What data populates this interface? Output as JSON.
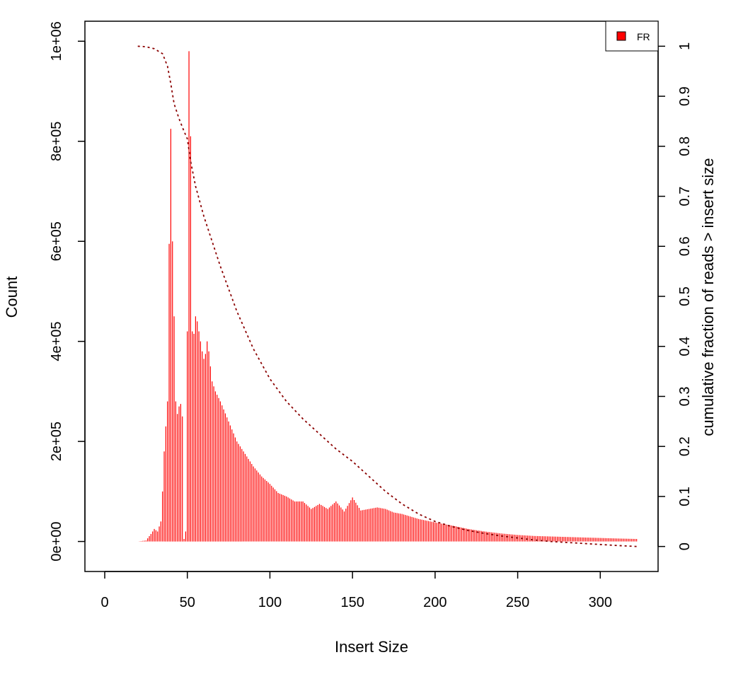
{
  "chart_data": {
    "type": "bar",
    "title": "",
    "xlabel": "Insert Size",
    "ylabel": "Count",
    "y2label": "cumulative fraction of reads > insert size",
    "xlim": [
      -12,
      335
    ],
    "ylim": [
      -60000,
      1040000
    ],
    "y2lim": [
      -0.05,
      1.05
    ],
    "x_ticks": [
      0,
      50,
      100,
      150,
      200,
      250,
      300
    ],
    "x_tick_labels": [
      "0",
      "50",
      "100",
      "150",
      "200",
      "250",
      "300"
    ],
    "y_ticks": [
      0,
      200000,
      400000,
      600000,
      800000,
      1000000
    ],
    "y_tick_labels": [
      "0e+00",
      "2e+05",
      "4e+05",
      "6e+05",
      "8e+05",
      "1e+06"
    ],
    "y2_ticks": [
      0,
      0.1,
      0.2,
      0.3,
      0.4,
      0.5,
      0.6,
      0.7,
      0.8,
      0.9,
      1
    ],
    "y2_tick_labels": [
      "0",
      "0.1",
      "0.2",
      "0.3",
      "0.4",
      "0.5",
      "0.6",
      "0.7",
      "0.8",
      "0.9",
      "1"
    ],
    "legend": {
      "position": "top-right",
      "entries": [
        {
          "label": "FR",
          "color": "#ff0000"
        }
      ]
    },
    "grid": false,
    "colors": {
      "bars": "#ff0000",
      "cumulative": "#8b0000"
    },
    "series": [
      {
        "name": "FR",
        "kind": "bar",
        "anchors": [
          [
            20,
            0
          ],
          [
            25,
            2000
          ],
          [
            28,
            15000
          ],
          [
            30,
            25000
          ],
          [
            32,
            20000
          ],
          [
            33,
            30000
          ],
          [
            34,
            40000
          ],
          [
            35,
            100000
          ],
          [
            36,
            180000
          ],
          [
            37,
            230000
          ],
          [
            38,
            280000
          ],
          [
            39,
            595000
          ],
          [
            40,
            825000
          ],
          [
            41,
            600000
          ],
          [
            42,
            450000
          ],
          [
            43,
            280000
          ],
          [
            44,
            255000
          ],
          [
            45,
            270000
          ],
          [
            46,
            275000
          ],
          [
            47,
            250000
          ],
          [
            48,
            5000
          ],
          [
            49,
            20000
          ],
          [
            50,
            420000
          ],
          [
            51,
            980000
          ],
          [
            52,
            810000
          ],
          [
            53,
            420000
          ],
          [
            54,
            415000
          ],
          [
            55,
            450000
          ],
          [
            56,
            440000
          ],
          [
            57,
            420000
          ],
          [
            58,
            400000
          ],
          [
            59,
            380000
          ],
          [
            60,
            365000
          ],
          [
            61,
            375000
          ],
          [
            62,
            400000
          ],
          [
            63,
            380000
          ],
          [
            64,
            350000
          ],
          [
            65,
            320000
          ],
          [
            67,
            300000
          ],
          [
            70,
            280000
          ],
          [
            75,
            240000
          ],
          [
            80,
            200000
          ],
          [
            85,
            175000
          ],
          [
            90,
            150000
          ],
          [
            95,
            130000
          ],
          [
            100,
            115000
          ],
          [
            105,
            97000
          ],
          [
            110,
            90000
          ],
          [
            115,
            80000
          ],
          [
            120,
            80000
          ],
          [
            125,
            65000
          ],
          [
            130,
            75000
          ],
          [
            135,
            65000
          ],
          [
            140,
            80000
          ],
          [
            145,
            60000
          ],
          [
            150,
            88000
          ],
          [
            155,
            62000
          ],
          [
            160,
            65000
          ],
          [
            165,
            68000
          ],
          [
            170,
            65000
          ],
          [
            175,
            58000
          ],
          [
            180,
            55000
          ],
          [
            190,
            45000
          ],
          [
            200,
            38000
          ],
          [
            210,
            32000
          ],
          [
            220,
            25000
          ],
          [
            230,
            20000
          ],
          [
            240,
            16000
          ],
          [
            250,
            13000
          ],
          [
            260,
            11000
          ],
          [
            270,
            10000
          ],
          [
            280,
            9000
          ],
          [
            290,
            8000
          ],
          [
            300,
            7000
          ],
          [
            310,
            6000
          ],
          [
            322,
            5000
          ]
        ]
      },
      {
        "name": "cumulative fraction of reads > insert size",
        "kind": "line",
        "style": "dotted",
        "axis": "right",
        "x": [
          20,
          25,
          30,
          35,
          38,
          40,
          42,
          45,
          48,
          50,
          52,
          55,
          60,
          65,
          70,
          75,
          80,
          90,
          100,
          110,
          120,
          130,
          140,
          150,
          160,
          170,
          180,
          190,
          200,
          210,
          220,
          230,
          240,
          250,
          260,
          270,
          280,
          290,
          300,
          310,
          322
        ],
        "y": [
          1.0,
          0.999,
          0.995,
          0.985,
          0.96,
          0.925,
          0.885,
          0.855,
          0.83,
          0.815,
          0.77,
          0.72,
          0.66,
          0.61,
          0.56,
          0.515,
          0.47,
          0.395,
          0.335,
          0.29,
          0.255,
          0.225,
          0.195,
          0.17,
          0.14,
          0.11,
          0.085,
          0.065,
          0.05,
          0.04,
          0.032,
          0.026,
          0.021,
          0.017,
          0.013,
          0.01,
          0.008,
          0.006,
          0.004,
          0.002,
          0.0
        ]
      }
    ]
  }
}
